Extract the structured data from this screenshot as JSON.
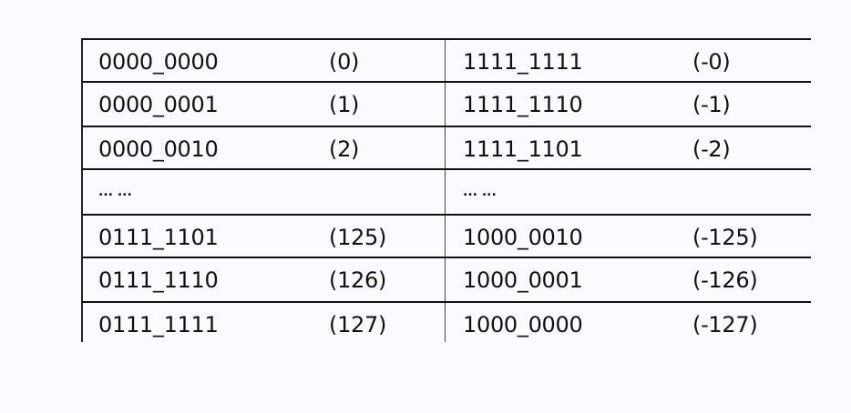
{
  "table": {
    "rows": [
      {
        "pos_bits": "0000_0000",
        "pos_val": "(0)",
        "neg_bits": "1111_1111",
        "neg_val": "(-0)"
      },
      {
        "pos_bits": "0000_0001",
        "pos_val": "(1)",
        "neg_bits": "1111_1110",
        "neg_val": "(-1)"
      },
      {
        "pos_bits": "0000_0010",
        "pos_val": "(2)",
        "neg_bits": "1111_1101",
        "neg_val": "(-2)"
      },
      {
        "pos_bits": "... ...",
        "pos_val": "",
        "neg_bits": "... ...",
        "neg_val": ""
      },
      {
        "pos_bits": "0111_1101",
        "pos_val": "(125)",
        "neg_bits": "1000_0010",
        "neg_val": "(-125)"
      },
      {
        "pos_bits": "0111_1110",
        "pos_val": "(126)",
        "neg_bits": "1000_0001",
        "neg_val": "(-126)"
      },
      {
        "pos_bits": "0111_1111",
        "pos_val": "(127)",
        "neg_bits": "1000_0000",
        "neg_val": "(-127)"
      }
    ]
  }
}
